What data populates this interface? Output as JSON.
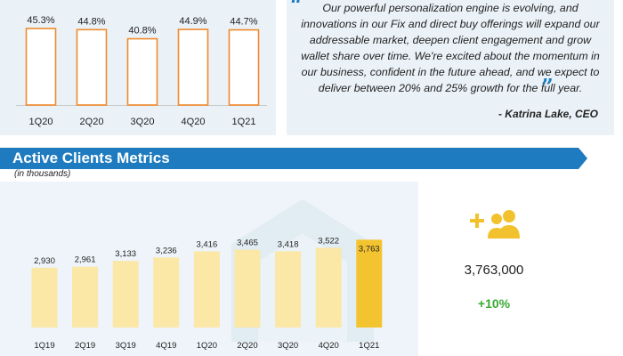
{
  "quote": {
    "text": "Our powerful personalization engine is evolving, and innovations in our Fix and direct buy offerings will expand our addressable market, deepen client engagement and grow wallet share over time. We're excited about the momentum in our business, confident in the future ahead, and we expect to deliver between 20% and 25% growth for the full year.",
    "author": "- Katrina Lake, CEO"
  },
  "section": {
    "title": "Active Clients Metrics",
    "subtitle": "(in thousands)"
  },
  "kpi": {
    "icon": "add-users-icon",
    "value": "3,763,000",
    "growth": "+10%"
  },
  "colors": {
    "banner_blue": "#1f7bbf",
    "bar_light_yellow": "#fbe7a6",
    "bar_highlight_yellow": "#f4c430",
    "bar_outline_orange": "#f08a2c",
    "growth_green": "#3aaa35",
    "icon_yellow": "#f2c12e"
  },
  "chart_data": [
    {
      "type": "bar",
      "categories": [
        "1Q20",
        "2Q20",
        "3Q20",
        "4Q20",
        "1Q21"
      ],
      "values": [
        45.3,
        44.8,
        40.8,
        44.9,
        44.7
      ],
      "labels": [
        "45.3%",
        "44.8%",
        "40.8%",
        "44.9%",
        "44.7%"
      ],
      "ylim": [
        0,
        50
      ]
    },
    {
      "type": "bar",
      "categories": [
        "1Q19",
        "2Q19",
        "3Q19",
        "4Q19",
        "1Q20",
        "2Q20",
        "3Q20",
        "4Q20",
        "1Q21"
      ],
      "values": [
        2930,
        2961,
        3133,
        3236,
        3416,
        3465,
        3418,
        3522,
        3763
      ],
      "labels": [
        "2,930",
        "2,961",
        "3,133",
        "3,236",
        "3,416",
        "3,465",
        "3,418",
        "3,522",
        "3,763"
      ],
      "ylim": [
        0,
        3850
      ],
      "highlight_index": 8
    }
  ]
}
